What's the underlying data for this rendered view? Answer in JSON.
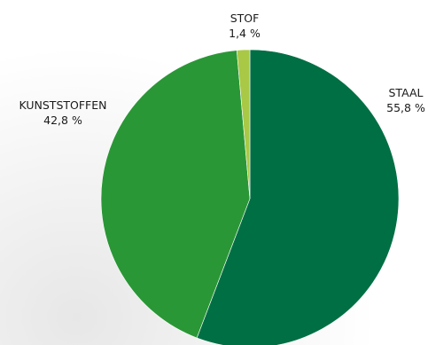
{
  "chart_data": {
    "type": "pie",
    "title": "",
    "slices": [
      {
        "label": "STAAL",
        "value": 55.8,
        "display": "55,8 %",
        "color": "#006f44"
      },
      {
        "label": "KUNSTSTOFFEN",
        "value": 42.8,
        "display": "42,8 %",
        "color": "#2a9736"
      },
      {
        "label": "STOF",
        "value": 1.4,
        "display": "1,4 %",
        "color": "#a8c846"
      }
    ],
    "start": "12 o'clock",
    "direction": "clockwise",
    "legend": "none (labels beside slices)"
  }
}
